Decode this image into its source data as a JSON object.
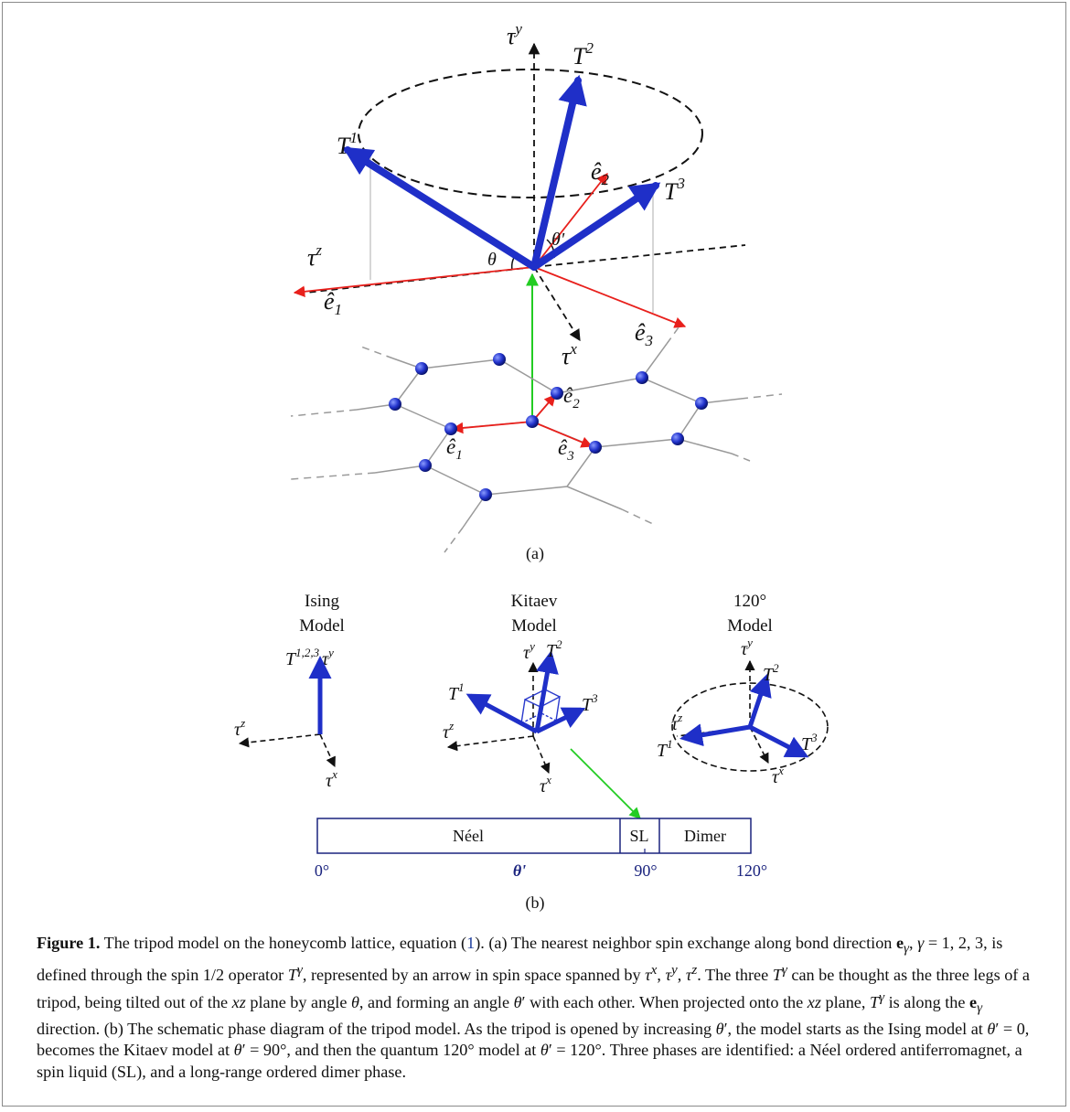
{
  "panel_a": {
    "labels": {
      "tau_y": "τ",
      "tau_y_sup": "y",
      "tau_z": "τ",
      "tau_z_sup": "z",
      "tau_x": "τ",
      "tau_x_sup": "x",
      "T1": "T",
      "T1_sup": "1",
      "T2": "T",
      "T2_sup": "2",
      "T3": "T",
      "T3_sup": "3",
      "e1": "ê",
      "e1_sub": "1",
      "e2": "ê",
      "e2_sub": "2",
      "e3": "ê",
      "e3_sub": "3",
      "theta": "θ",
      "theta_prime": "θ'"
    },
    "lattice_labels": {
      "e1": "ê",
      "e1_sub": "1",
      "e2": "ê",
      "e2_sub": "2",
      "e3": "ê",
      "e3_sub": "3"
    },
    "panel_label": "(a)"
  },
  "panel_b": {
    "models": [
      {
        "title_line1": "Ising",
        "title_line2": "Model",
        "t_label": "T",
        "t_sup": "1,2,3"
      },
      {
        "title_line1": "Kitaev",
        "title_line2": "Model"
      },
      {
        "title_line1": "120°",
        "title_line2": "Model"
      }
    ],
    "phase_bar": {
      "segments": [
        "Néel",
        "SL",
        "Dimer"
      ],
      "ticks": [
        "0°",
        "θ'",
        "90°",
        "120°"
      ]
    },
    "panel_label": "(b)"
  },
  "caption": {
    "label": "Figure 1.",
    "text_html": " The tripod model on the honeycomb lattice, equation (<span class=\"ref\">1</span>). (a) The nearest neighbor spin exchange along bond direction <b>e</b><sub><i>γ</i></sub>, <i>γ</i> = 1, 2, 3, is defined through the spin 1/2 operator <i>T</i><sup><i>γ</i></sup>, represented by an arrow in spin space spanned by <i>τ</i><sup><i>x</i></sup>, <i>τ</i><sup><i>y</i></sup>, <i>τ</i><sup><i>z</i></sup>. The three <i>T</i><sup><i>γ</i></sup> can be thought as the three legs of a tripod, being tilted out of the <i>xz</i> plane by angle <i>θ</i>, and forming an angle <i>θ</i>′ with each other. When projected onto the <i>xz</i> plane, <i>T</i><sup><i>γ</i></sup> is along the <b>e</b><sub><i>γ</i></sub> direction. (b) The schematic phase diagram of the tripod model. As the tripod is opened by increasing <i>θ</i>′, the model starts as the Ising model at <i>θ</i>′ = 0, becomes the Kitaev model at <i>θ</i>′ = 90°, and then the quantum 120° model at <i>θ</i>′ = 120°. Three phases are identified: a Néel ordered antiferromagnet, a spin liquid (SL), and a long-range ordered dimer phase."
  },
  "colors": {
    "arrow_blue": "#1f2fc8",
    "red": "#e8201c",
    "green": "#22cc22",
    "axis_dashed": "#111111",
    "lattice_gray": "#9a9a9a",
    "bar_border": "#1a237e",
    "tick_blue": "#1a237e"
  }
}
